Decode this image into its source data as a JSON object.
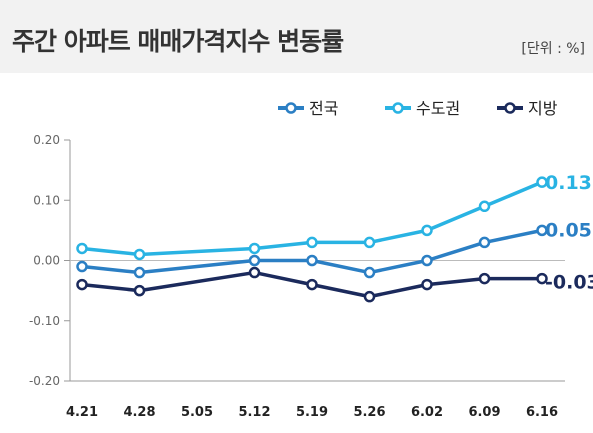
{
  "header": {
    "title": "주간 아파트 매매가격지수 변동률",
    "unit": "[단위 : %]"
  },
  "chart_data": {
    "type": "line",
    "title": "주간 아파트 매매가격지수 변동률",
    "unit": "[단위 : %]",
    "categories": [
      "4.21",
      "4.28",
      "5.05",
      "5.12",
      "5.19",
      "5.26",
      "6.02",
      "6.09",
      "6.16"
    ],
    "ylim": [
      -0.2,
      0.2
    ],
    "yticks": [
      "0.20",
      "0.10",
      "0.00",
      "-0.10",
      "-0.20"
    ],
    "ytick_values": [
      0.2,
      0.1,
      0.0,
      -0.1,
      -0.2
    ],
    "legend_position": "top-right",
    "grid": false,
    "series": [
      {
        "name": "전국",
        "color": "#2b7fc4",
        "values": [
          -0.01,
          -0.02,
          null,
          0.0,
          0.0,
          -0.02,
          0.0,
          0.03,
          0.05
        ],
        "end_label": "0.05"
      },
      {
        "name": "수도권",
        "color": "#29b3e3",
        "values": [
          0.02,
          0.01,
          null,
          0.02,
          0.03,
          0.03,
          0.05,
          0.09,
          0.13
        ],
        "end_label": "0.13"
      },
      {
        "name": "지방",
        "color": "#1b2a5c",
        "values": [
          -0.04,
          -0.05,
          null,
          -0.02,
          -0.04,
          -0.06,
          -0.04,
          -0.03,
          -0.03
        ],
        "end_label": "-0.03"
      }
    ]
  }
}
